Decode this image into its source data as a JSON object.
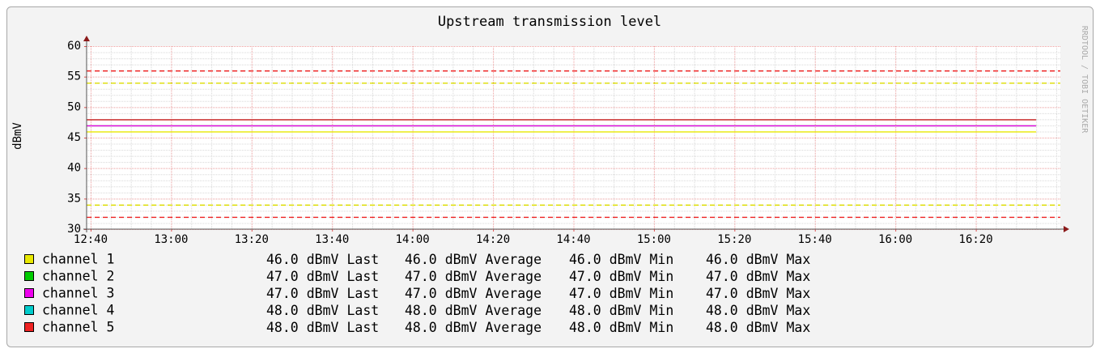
{
  "chart_data": {
    "type": "line",
    "title": "Upstream transmission level",
    "y_label": "dBmV",
    "watermark": "RRDTOOL / TOBI OETIKER",
    "ylim": [
      30,
      60
    ],
    "yticks": [
      30,
      35,
      40,
      45,
      50,
      55,
      60
    ],
    "y_minor_step": 1,
    "xlim": [
      759,
      1001
    ],
    "xticks": [
      {
        "value": 760,
        "label": "12:40"
      },
      {
        "value": 780,
        "label": "13:00"
      },
      {
        "value": 800,
        "label": "13:20"
      },
      {
        "value": 820,
        "label": "13:40"
      },
      {
        "value": 840,
        "label": "14:00"
      },
      {
        "value": 860,
        "label": "14:20"
      },
      {
        "value": 880,
        "label": "14:40"
      },
      {
        "value": 900,
        "label": "15:00"
      },
      {
        "value": 920,
        "label": "15:20"
      },
      {
        "value": 940,
        "label": "15:40"
      },
      {
        "value": 960,
        "label": "16:00"
      },
      {
        "value": 980,
        "label": "16:20"
      }
    ],
    "x_minor_step": 5,
    "grid": true,
    "x": [
      759,
      995
    ],
    "hlines": [
      {
        "value": 56,
        "color": "#ee2222"
      },
      {
        "value": 54,
        "color": "#dddd00"
      },
      {
        "value": 34,
        "color": "#dddd00"
      },
      {
        "value": 32,
        "color": "#ee2222"
      }
    ],
    "stat_names": [
      "Last",
      "Average",
      "Min",
      "Max"
    ],
    "series": [
      {
        "name": "channel 1",
        "color": "#e8e800",
        "values": [
          46,
          46
        ],
        "stats": [
          46,
          46,
          46,
          46
        ],
        "stats_labels": [
          "46.0",
          "46.0",
          "46.0",
          "46.0"
        ]
      },
      {
        "name": "channel 2",
        "color": "#00cc00",
        "values": [
          47,
          47
        ],
        "stats": [
          47,
          47,
          47,
          47
        ],
        "stats_labels": [
          "47.0",
          "47.0",
          "47.0",
          "47.0"
        ]
      },
      {
        "name": "channel 3",
        "color": "#ee00ee",
        "values": [
          47,
          47
        ],
        "stats": [
          47,
          47,
          47,
          47
        ],
        "stats_labels": [
          "47.0",
          "47.0",
          "47.0",
          "47.0"
        ]
      },
      {
        "name": "channel 4",
        "color": "#00cccc",
        "values": [
          48,
          48
        ],
        "stats": [
          48,
          48,
          48,
          48
        ],
        "stats_labels": [
          "48.0",
          "48.0",
          "48.0",
          "48.0"
        ]
      },
      {
        "name": "channel 5",
        "color": "#ee2222",
        "values": [
          48,
          48
        ],
        "stats": [
          48,
          48,
          48,
          48
        ],
        "stats_labels": [
          "48.0",
          "48.0",
          "48.0",
          "48.0"
        ]
      }
    ]
  }
}
